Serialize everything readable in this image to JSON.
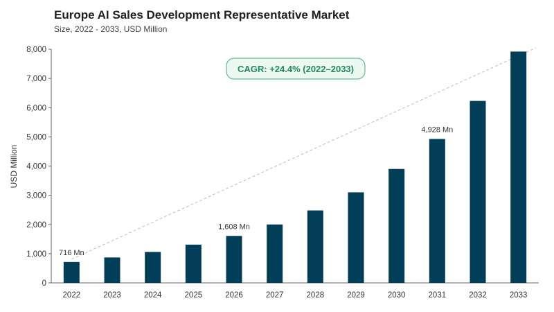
{
  "title": "Europe AI Sales Development Representative Market",
  "subtitle": "Size, 2022 - 2033, USD Million",
  "colors": {
    "bar": "#023e58",
    "cagr_border": "#62bb95",
    "cagr_fill": "#eef8f3",
    "cagr_text": "#1d8a5f",
    "trend_line": "#bdbdbd",
    "axis": "#666666",
    "grid": "#e6e6e6"
  },
  "chart_data": {
    "type": "bar",
    "categories": [
      "2022",
      "2023",
      "2024",
      "2025",
      "2026",
      "2027",
      "2028",
      "2029",
      "2030",
      "2031",
      "2032",
      "2033"
    ],
    "values": [
      716,
      870,
      1060,
      1310,
      1608,
      2000,
      2480,
      3100,
      3900,
      4928,
      6230,
      7920
    ],
    "ylabel": "USD Million",
    "ylim": [
      0,
      8000
    ],
    "yticks": [
      0,
      1000,
      2000,
      3000,
      4000,
      5000,
      6000,
      7000,
      8000
    ],
    "ytick_labels": [
      "0",
      "1,000",
      "2,000",
      "3,000",
      "4,000",
      "5,000",
      "6,000",
      "7,000",
      "8,000"
    ],
    "data_labels": [
      {
        "index": 0,
        "text": "716 Mn"
      },
      {
        "index": 4,
        "text": "1,608 Mn"
      },
      {
        "index": 9,
        "text": "4,928 Mn"
      }
    ],
    "annotation": "CAGR: +24.4% (2022–2033)",
    "grid": false
  }
}
